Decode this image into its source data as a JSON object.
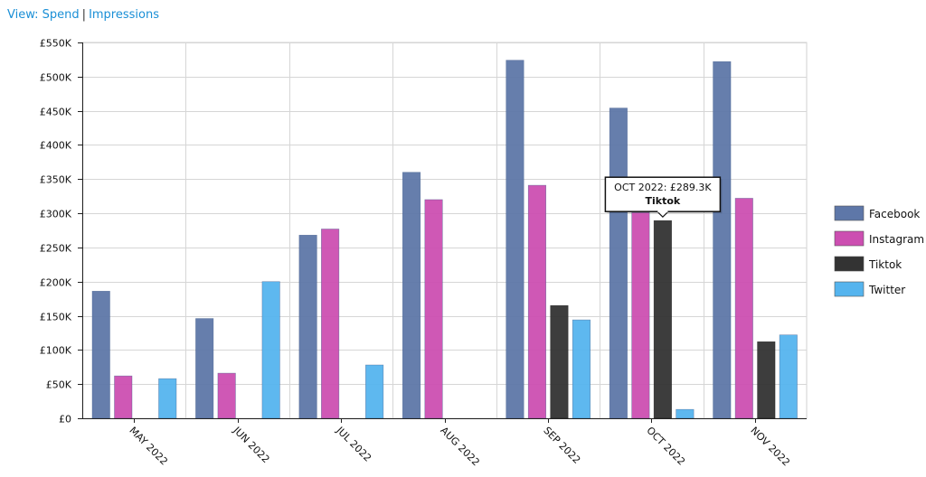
{
  "view": {
    "prefix": "View:",
    "options": [
      "Spend",
      "Impressions"
    ],
    "separator": "|"
  },
  "tooltip": {
    "series": "Tiktok",
    "category": "OCT 2022",
    "value_label": "OCT 2022: £289.3K"
  },
  "colors": {
    "Facebook": "#5e77a8",
    "Instagram": "#cc4fb1",
    "Tiktok": "#333333",
    "Twitter": "#55b4ee"
  },
  "chart_data": {
    "type": "bar",
    "title": "",
    "xlabel": "",
    "ylabel": "",
    "categories": [
      "MAY 2022",
      "JUN 2022",
      "JUL 2022",
      "AUG 2022",
      "SEP 2022",
      "OCT 2022",
      "NOV 2022"
    ],
    "series": [
      {
        "name": "Facebook",
        "values": [
          186000,
          146000,
          268000,
          360000,
          524000,
          454000,
          522000
        ]
      },
      {
        "name": "Instagram",
        "values": [
          62000,
          66000,
          277000,
          320000,
          341000,
          301000,
          322000
        ]
      },
      {
        "name": "Tiktok",
        "values": [
          0,
          0,
          0,
          0,
          165000,
          289300,
          112000
        ]
      },
      {
        "name": "Twitter",
        "values": [
          58000,
          200000,
          78000,
          0,
          144000,
          13000,
          122000
        ]
      }
    ],
    "ylim": [
      0,
      550000
    ],
    "yticks": [
      {
        "value": 0,
        "label": "£0"
      },
      {
        "value": 50000,
        "label": "£50K"
      },
      {
        "value": 100000,
        "label": "£100K"
      },
      {
        "value": 150000,
        "label": "£150K"
      },
      {
        "value": 200000,
        "label": "£200K"
      },
      {
        "value": 250000,
        "label": "£250K"
      },
      {
        "value": 300000,
        "label": "£300K"
      },
      {
        "value": 350000,
        "label": "£350K"
      },
      {
        "value": 400000,
        "label": "£400K"
      },
      {
        "value": 450000,
        "label": "£450K"
      },
      {
        "value": 500000,
        "label": "£500K"
      },
      {
        "value": 550000,
        "label": "£550K"
      }
    ],
    "grid": true,
    "legend_position": "right"
  }
}
